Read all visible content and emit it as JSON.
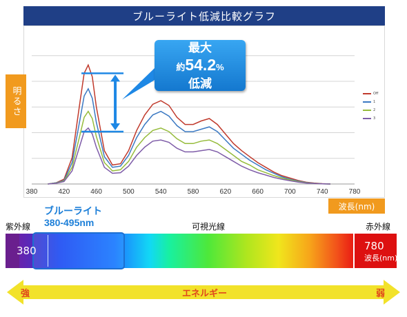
{
  "title": "ブルーライト低減比較グラフ",
  "ylabel": "明るさ",
  "xlabel": "波長(nm)",
  "callout": {
    "line1": "最大",
    "prefix": "約",
    "value": "54.2",
    "unit": "%",
    "line3": "低減"
  },
  "spectrum": {
    "uv_label": "紫外線",
    "visible_label": "可視光線",
    "ir_label": "赤外線",
    "blue_title": "ブルーライト",
    "blue_range": "380-495nm",
    "start_value": "380",
    "end_value": "780",
    "end_unit": "波長(nm)"
  },
  "energy": {
    "label": "エネルギー",
    "strong": "強",
    "weak": "弱",
    "arrow_color": "#f2e22a"
  },
  "colors": {
    "title_bg": "#1f3f86",
    "label_bg": "#f19a1e",
    "callout": "#1e88e5"
  },
  "chart_data": {
    "type": "line",
    "title": "ブルーライト低減比較グラフ",
    "xlabel": "波長(nm)",
    "ylabel": "明るさ",
    "x_ticks": [
      380,
      420,
      460,
      500,
      540,
      580,
      620,
      660,
      700,
      740,
      780
    ],
    "xlim": [
      380,
      780
    ],
    "ylim": [
      0,
      1.1
    ],
    "grid": "horizontal",
    "legend_position": "right",
    "x": [
      400,
      410,
      420,
      430,
      440,
      445,
      450,
      455,
      460,
      470,
      480,
      490,
      500,
      510,
      520,
      530,
      540,
      550,
      560,
      570,
      580,
      590,
      600,
      610,
      620,
      630,
      640,
      650,
      660,
      670,
      680,
      690,
      700,
      710,
      720,
      730,
      740,
      750
    ],
    "series": [
      {
        "name": "Off",
        "color": "#c0392b",
        "values": [
          0.0,
          0.01,
          0.04,
          0.22,
          0.7,
          0.93,
          1.0,
          0.9,
          0.65,
          0.28,
          0.16,
          0.17,
          0.28,
          0.45,
          0.58,
          0.67,
          0.7,
          0.66,
          0.56,
          0.5,
          0.5,
          0.53,
          0.55,
          0.5,
          0.42,
          0.34,
          0.28,
          0.23,
          0.18,
          0.14,
          0.1,
          0.07,
          0.05,
          0.03,
          0.015,
          0.008,
          0.003,
          0.0
        ]
      },
      {
        "name": "1",
        "color": "#3a78c2",
        "values": [
          0.0,
          0.01,
          0.03,
          0.18,
          0.55,
          0.74,
          0.8,
          0.72,
          0.52,
          0.23,
          0.14,
          0.15,
          0.24,
          0.39,
          0.5,
          0.58,
          0.61,
          0.57,
          0.49,
          0.44,
          0.44,
          0.46,
          0.48,
          0.44,
          0.37,
          0.3,
          0.25,
          0.2,
          0.16,
          0.12,
          0.09,
          0.06,
          0.04,
          0.025,
          0.012,
          0.006,
          0.002,
          0.0
        ]
      },
      {
        "name": "2",
        "color": "#95bb3a",
        "values": [
          0.0,
          0.008,
          0.025,
          0.14,
          0.42,
          0.56,
          0.61,
          0.55,
          0.4,
          0.18,
          0.11,
          0.12,
          0.19,
          0.31,
          0.39,
          0.45,
          0.47,
          0.44,
          0.38,
          0.34,
          0.34,
          0.36,
          0.37,
          0.34,
          0.29,
          0.24,
          0.19,
          0.16,
          0.12,
          0.095,
          0.07,
          0.05,
          0.035,
          0.02,
          0.01,
          0.005,
          0.002,
          0.0
        ]
      },
      {
        "name": "3",
        "color": "#7e5ca8",
        "values": [
          0.0,
          0.006,
          0.02,
          0.11,
          0.33,
          0.44,
          0.47,
          0.42,
          0.31,
          0.14,
          0.09,
          0.095,
          0.15,
          0.24,
          0.31,
          0.36,
          0.37,
          0.35,
          0.3,
          0.27,
          0.27,
          0.28,
          0.29,
          0.27,
          0.23,
          0.19,
          0.15,
          0.12,
          0.095,
          0.075,
          0.055,
          0.04,
          0.028,
          0.016,
          0.008,
          0.004,
          0.0015,
          0.0
        ]
      }
    ],
    "annotation": {
      "x": 445,
      "from_series": "Off",
      "to_series": "3",
      "text": "最大 約54.2% 低減"
    }
  }
}
